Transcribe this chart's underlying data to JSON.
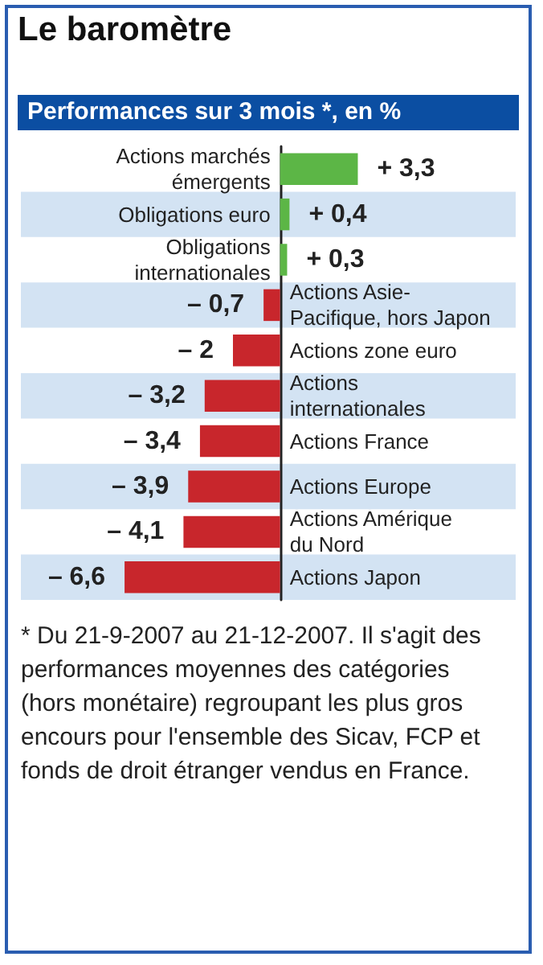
{
  "chart_data": {
    "type": "bar",
    "orientation": "horizontal",
    "title": "Le baromètre",
    "subtitle": "Performances sur 3 mois *, en %",
    "categories": [
      "Actions marchés\némergents",
      "Obligations euro",
      "Obligations\ninternationales",
      "Actions Asie-\nPacifique, hors Japon",
      "Actions zone euro",
      "Actions\ninternationales",
      "Actions France",
      "Actions Europe",
      "Actions Amérique\ndu Nord",
      "Actions Japon"
    ],
    "values": [
      3.3,
      0.4,
      0.3,
      -0.7,
      -2,
      -3.2,
      -3.4,
      -3.9,
      -4.1,
      -6.6
    ],
    "colors": [
      "#5cb646",
      "#5cb646",
      "#5cb646",
      "#c8262c",
      "#c8262c",
      "#c8262c",
      "#c8262c",
      "#c8262c",
      "#c8262c",
      "#c8262c"
    ],
    "value_labels": [
      "+ 3,3",
      "+ 0,4",
      "+ 0,3",
      "– 0,7",
      "– 2",
      "– 3,2",
      "– 3,4",
      "– 3,9",
      "– 4,1",
      "– 6,6"
    ],
    "xlim": [
      -11,
      10
    ],
    "tick_labels": "y",
    "grid": false,
    "annotations": [
      "* Du 21-9-2007 au 21-12-2007. Il s'agit des performances moyennes des catégories (hors monétaire) regroupant les plus gros encours pour l'ensemble des Sicav, FCP et fonds de droit étranger vendus en France."
    ]
  }
}
